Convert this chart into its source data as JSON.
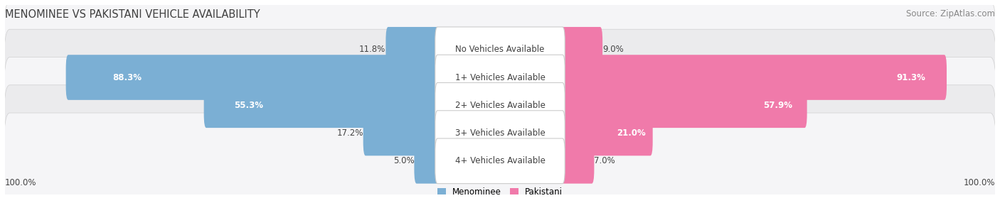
{
  "title": "MENOMINEE VS PAKISTANI VEHICLE AVAILABILITY",
  "source": "Source: ZipAtlas.com",
  "categories": [
    "No Vehicles Available",
    "1+ Vehicles Available",
    "2+ Vehicles Available",
    "3+ Vehicles Available",
    "4+ Vehicles Available"
  ],
  "menominee_values": [
    11.8,
    88.3,
    55.3,
    17.2,
    5.0
  ],
  "pakistani_values": [
    9.0,
    91.3,
    57.9,
    21.0,
    7.0
  ],
  "menominee_color": "#7bafd4",
  "pakistani_color": "#f07aaa",
  "row_bg_odd": "#f5f5f7",
  "row_bg_even": "#ebebed",
  "max_value": 100.0,
  "bar_height": 0.62,
  "label_fontsize": 8.5,
  "title_fontsize": 10.5,
  "source_fontsize": 8.5,
  "legend_fontsize": 8.5,
  "title_color": "#404040",
  "label_color": "#404040",
  "source_color": "#888888",
  "value_inside_color": "#ffffff",
  "value_outside_color": "#444444"
}
